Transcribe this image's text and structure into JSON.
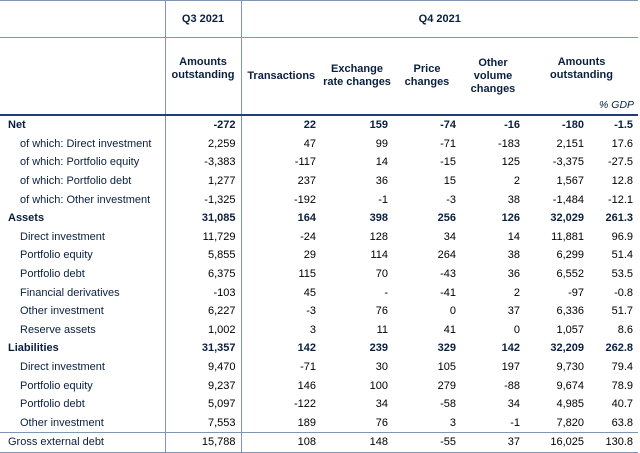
{
  "header": {
    "period_q3": "Q3 2021",
    "period_q4": "Q4 2021",
    "columns": [
      "Amounts outstanding",
      "Transactions",
      "Exchange rate changes",
      "Price changes",
      "Other volume changes",
      "Amounts outstanding"
    ],
    "gdp_unit": "% GDP"
  },
  "rows": [
    {
      "label": "Net",
      "kind": "sec",
      "values": [
        "-272",
        "22",
        "159",
        "-74",
        "-16",
        "-180",
        "-1.5"
      ]
    },
    {
      "label": "of which: Direct investment",
      "kind": "sub",
      "values": [
        "2,259",
        "47",
        "99",
        "-71",
        "-183",
        "2,151",
        "17.6"
      ]
    },
    {
      "label": "of which: Portfolio equity",
      "kind": "sub",
      "values": [
        "-3,383",
        "-117",
        "14",
        "-15",
        "125",
        "-3,375",
        "-27.5"
      ]
    },
    {
      "label": "of which: Portfolio debt",
      "kind": "sub",
      "values": [
        "1,277",
        "237",
        "36",
        "15",
        "2",
        "1,567",
        "12.8"
      ]
    },
    {
      "label": "of which: Other investment",
      "kind": "sub",
      "values": [
        "-1,325",
        "-192",
        "-1",
        "-3",
        "38",
        "-1,484",
        "-12.1"
      ]
    },
    {
      "label": "Assets",
      "kind": "sec",
      "values": [
        "31,085",
        "164",
        "398",
        "256",
        "126",
        "32,029",
        "261.3"
      ]
    },
    {
      "label": "Direct investment",
      "kind": "sub",
      "values": [
        "11,729",
        "-24",
        "128",
        "34",
        "14",
        "11,881",
        "96.9"
      ]
    },
    {
      "label": "Portfolio equity",
      "kind": "sub",
      "values": [
        "5,855",
        "29",
        "114",
        "264",
        "38",
        "6,299",
        "51.4"
      ]
    },
    {
      "label": "Portfolio debt",
      "kind": "sub",
      "values": [
        "6,375",
        "115",
        "70",
        "-43",
        "36",
        "6,552",
        "53.5"
      ]
    },
    {
      "label": "Financial derivatives",
      "kind": "sub",
      "values": [
        "-103",
        "45",
        "-",
        "-41",
        "2",
        "-97",
        "-0.8"
      ]
    },
    {
      "label": "Other investment",
      "kind": "sub",
      "values": [
        "6,227",
        "-3",
        "76",
        "0",
        "37",
        "6,336",
        "51.7"
      ]
    },
    {
      "label": "Reserve assets",
      "kind": "sub",
      "values": [
        "1,002",
        "3",
        "11",
        "41",
        "0",
        "1,057",
        "8.6"
      ]
    },
    {
      "label": "Liabilities",
      "kind": "sec",
      "values": [
        "31,357",
        "142",
        "239",
        "329",
        "142",
        "32,209",
        "262.8"
      ]
    },
    {
      "label": "Direct investment",
      "kind": "sub",
      "values": [
        "9,470",
        "-71",
        "30",
        "105",
        "197",
        "9,730",
        "79.4"
      ]
    },
    {
      "label": "Portfolio equity",
      "kind": "sub",
      "values": [
        "9,237",
        "146",
        "100",
        "279",
        "-88",
        "9,674",
        "78.9"
      ]
    },
    {
      "label": "Portfolio debt",
      "kind": "sub",
      "values": [
        "5,097",
        "-122",
        "34",
        "-58",
        "34",
        "4,985",
        "40.7"
      ]
    },
    {
      "label": "Other investment",
      "kind": "sub",
      "values": [
        "7,553",
        "189",
        "76",
        "3",
        "-1",
        "7,820",
        "63.8"
      ]
    },
    {
      "label": "Gross external debt",
      "kind": "gross",
      "values": [
        "15,788",
        "108",
        "148",
        "-55",
        "37",
        "16,025",
        "130.8"
      ]
    }
  ]
}
